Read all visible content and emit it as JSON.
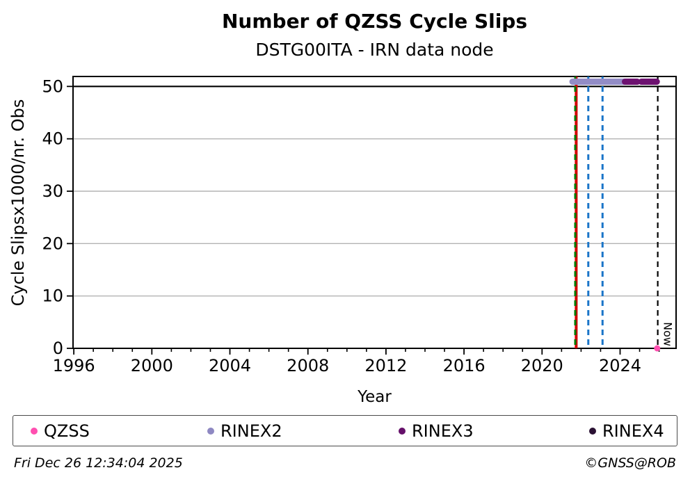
{
  "header": {
    "title": "Number of QZSS Cycle Slips",
    "subtitle": "DSTG00ITA - IRN data node"
  },
  "chart_data": {
    "type": "scatter",
    "title": "Number of QZSS Cycle Slips",
    "subtitle": "DSTG00ITA - IRN data node",
    "xlabel": "Year",
    "ylabel": "Cycle Slipsx1000/nr. Obs",
    "xlim": [
      1995.96,
      2026.87
    ],
    "ylim": [
      0,
      51.9
    ],
    "x_major_ticks": [
      1996,
      2000,
      2004,
      2008,
      2012,
      2016,
      2020,
      2024
    ],
    "x_minor_tick_step": 1,
    "y_ticks": [
      0,
      10,
      20,
      30,
      40,
      50
    ],
    "gridlines": {
      "y_gray": [
        10,
        20,
        30,
        40
      ],
      "y_black": [
        50
      ],
      "color_gray": "#b3b3b3",
      "color_black": "#000000"
    },
    "series": [
      {
        "name": "QZSS",
        "color": "#ff4fb0",
        "marker": "circle",
        "points": [
          {
            "x": 2025.9,
            "y": 0
          }
        ],
        "runs": []
      },
      {
        "name": "RINEX2",
        "color": "#938dc6",
        "marker": "circle",
        "value": 50.9,
        "runs": [
          [
            2021.56,
            2024.22
          ]
        ],
        "points": []
      },
      {
        "name": "RINEX3",
        "color": "#6d1270",
        "marker": "circle",
        "value": 50.9,
        "runs": [
          [
            2024.25,
            2024.88
          ],
          [
            2025.09,
            2025.88
          ]
        ],
        "points": []
      },
      {
        "name": "RINEX4",
        "color": "#2a1133",
        "marker": "circle",
        "runs": [],
        "points": []
      }
    ],
    "vlines": [
      {
        "x": 2021.75,
        "color": "#d40000",
        "style": "solid",
        "width": 4,
        "name": "red-event-line"
      },
      {
        "x": 2021.7,
        "color": "#007b00",
        "style": "dashed",
        "width": 3,
        "name": "green-event-line"
      },
      {
        "x": 2022.37,
        "color": "#1a75c8",
        "style": "dashed",
        "width": 3,
        "name": "blue-event-line-1"
      },
      {
        "x": 2023.1,
        "color": "#1a75c8",
        "style": "dashed",
        "width": 3,
        "name": "blue-event-line-2"
      },
      {
        "x": 2025.93,
        "color": "#000000",
        "style": "dashed",
        "width": 2.2,
        "name": "now-line",
        "label": "Now"
      }
    ],
    "legend_position": "bottom"
  },
  "legend": {
    "items": [
      {
        "label": "QZSS",
        "color": "#ff4fb0"
      },
      {
        "label": "RINEX2",
        "color": "#8e88c2"
      },
      {
        "label": "RINEX3",
        "color": "#65106a"
      },
      {
        "label": "RINEX4",
        "color": "#2a1133"
      }
    ]
  },
  "footer": {
    "timestamp": "Fri Dec 26 12:34:04 2025",
    "credit": "©GNSS@ROB"
  }
}
